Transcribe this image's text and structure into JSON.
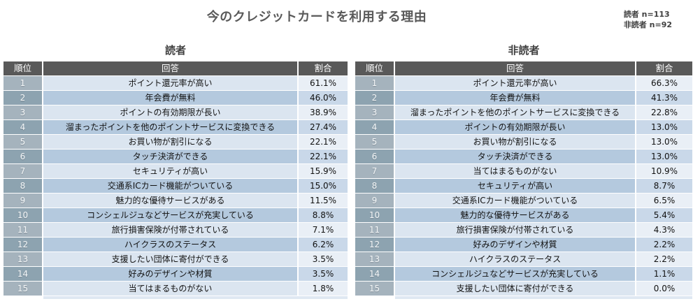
{
  "title": "今のクレジットカードを利用する理由",
  "legend": {
    "reader_n": "読者 n=113",
    "nonreader_n": "非読者 n=92"
  },
  "colors": {
    "header_bg": "#595959",
    "header_text": "#ffffff",
    "rank_light": "#a5b3bd",
    "rank_dark": "#8da3b0",
    "row_light": "#dbe5f0",
    "row_dark": "#b4c9de",
    "ratio_light": "#e9eff6",
    "ratio_dark": "#c9d8e9",
    "title_text": "#595959"
  },
  "chart_data": [
    {
      "type": "table",
      "title": "読者",
      "sample_label": "読者 n=113",
      "columns": [
        "順位",
        "回答",
        "割合"
      ],
      "rows": [
        [
          "1",
          "ポイント還元率が高い",
          "61.1%"
        ],
        [
          "2",
          "年会費が無料",
          "46.0%"
        ],
        [
          "3",
          "ポイントの有効期限が長い",
          "38.9%"
        ],
        [
          "4",
          "溜まったポイントを他のポイントサービスに変換できる",
          "27.4%"
        ],
        [
          "5",
          "お買い物が割引になる",
          "22.1%"
        ],
        [
          "6",
          "タッチ決済ができる",
          "22.1%"
        ],
        [
          "7",
          "セキュリティが高い",
          "15.9%"
        ],
        [
          "8",
          "交通系ICカード機能がついている",
          "15.0%"
        ],
        [
          "9",
          "魅力的な優待サービスがある",
          "11.5%"
        ],
        [
          "10",
          "コンシェルジュなどサービスが充実している",
          "8.8%"
        ],
        [
          "11",
          "旅行損害保険が付帯されている",
          "7.1%"
        ],
        [
          "12",
          "ハイクラスのステータス",
          "6.2%"
        ],
        [
          "13",
          "支援したい団体に寄付ができる",
          "3.5%"
        ],
        [
          "14",
          "好みのデザインや材質",
          "3.5%"
        ],
        [
          "15",
          "当てはまるものがない",
          "1.8%"
        ]
      ]
    },
    {
      "type": "table",
      "title": "非読者",
      "sample_label": "非読者 n=92",
      "columns": [
        "順位",
        "回答",
        "割合"
      ],
      "rows": [
        [
          "1",
          "ポイント還元率が高い",
          "66.3%"
        ],
        [
          "2",
          "年会費が無料",
          "41.3%"
        ],
        [
          "3",
          "溜まったポイントを他のポイントサービスに変換できる",
          "22.8%"
        ],
        [
          "4",
          "ポイントの有効期限が長い",
          "13.0%"
        ],
        [
          "5",
          "お買い物が割引になる",
          "13.0%"
        ],
        [
          "6",
          "タッチ決済ができる",
          "13.0%"
        ],
        [
          "7",
          "当てはまるものがない",
          "10.9%"
        ],
        [
          "8",
          "セキュリティが高い",
          "8.7%"
        ],
        [
          "9",
          "交通系ICカード機能がついている",
          "6.5%"
        ],
        [
          "10",
          "魅力的な優待サービスがある",
          "5.4%"
        ],
        [
          "11",
          "旅行損害保険が付帯されている",
          "4.3%"
        ],
        [
          "12",
          "好みのデザインや材質",
          "2.2%"
        ],
        [
          "13",
          "ハイクラスのステータス",
          "2.2%"
        ],
        [
          "14",
          "コンシェルジュなどサービスが充実している",
          "1.1%"
        ],
        [
          "15",
          "支援したい団体に寄付ができる",
          "0.0%"
        ]
      ]
    }
  ]
}
